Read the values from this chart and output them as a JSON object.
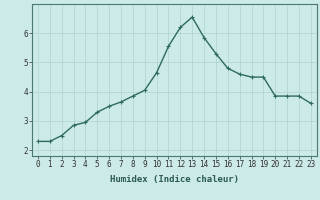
{
  "xlabel": "Humidex (Indice chaleur)",
  "x": [
    0,
    1,
    2,
    3,
    4,
    5,
    6,
    7,
    8,
    9,
    10,
    11,
    12,
    13,
    14,
    15,
    16,
    17,
    18,
    19,
    20,
    21,
    22,
    23
  ],
  "y": [
    2.3,
    2.3,
    2.5,
    2.85,
    2.95,
    3.3,
    3.5,
    3.65,
    3.85,
    4.05,
    4.65,
    5.55,
    6.2,
    6.55,
    5.85,
    5.3,
    4.8,
    4.6,
    4.5,
    4.5,
    3.85,
    3.85,
    3.85,
    3.6
  ],
  "line_color": "#2e6b5e",
  "marker": "+",
  "marker_size": 3,
  "marker_edge_width": 0.8,
  "bg_color": "#cceae7",
  "grid_color": "#aed4d1",
  "ylim": [
    1.8,
    7.0
  ],
  "xlim": [
    -0.5,
    23.5
  ],
  "yticks": [
    2,
    3,
    4,
    5,
    6
  ],
  "xticks": [
    0,
    1,
    2,
    3,
    4,
    5,
    6,
    7,
    8,
    9,
    10,
    11,
    12,
    13,
    14,
    15,
    16,
    17,
    18,
    19,
    20,
    21,
    22,
    23
  ],
  "tick_fontsize": 5.5,
  "xlabel_fontsize": 6.5,
  "linewidth": 1.0,
  "spine_color": "#4a7a72"
}
